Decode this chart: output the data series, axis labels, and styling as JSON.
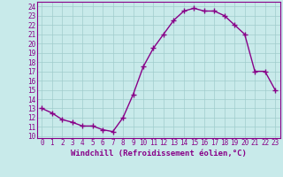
{
  "x": [
    0,
    1,
    2,
    3,
    4,
    5,
    6,
    7,
    8,
    9,
    10,
    11,
    12,
    13,
    14,
    15,
    16,
    17,
    18,
    19,
    20,
    21,
    22,
    23
  ],
  "y": [
    13.0,
    12.5,
    11.8,
    11.5,
    11.1,
    11.1,
    10.7,
    10.5,
    12.0,
    14.5,
    17.5,
    19.5,
    21.0,
    22.5,
    23.5,
    23.8,
    23.5,
    23.5,
    23.0,
    22.0,
    21.0,
    17.0,
    17.0,
    15.0
  ],
  "line_color": "#880088",
  "marker": "+",
  "marker_size": 4,
  "marker_linewidth": 1.0,
  "line_width": 1.0,
  "xlabel": "Windchill (Refroidissement éolien,°C)",
  "xlabel_fontsize": 6.5,
  "ylabel_ticks": [
    10,
    11,
    12,
    13,
    14,
    15,
    16,
    17,
    18,
    19,
    20,
    21,
    22,
    23,
    24
  ],
  "xlim": [
    -0.5,
    23.5
  ],
  "ylim": [
    9.8,
    24.5
  ],
  "background_color": "#c8eaea",
  "grid_color": "#a0cccc",
  "tick_fontsize": 5.5,
  "title": ""
}
